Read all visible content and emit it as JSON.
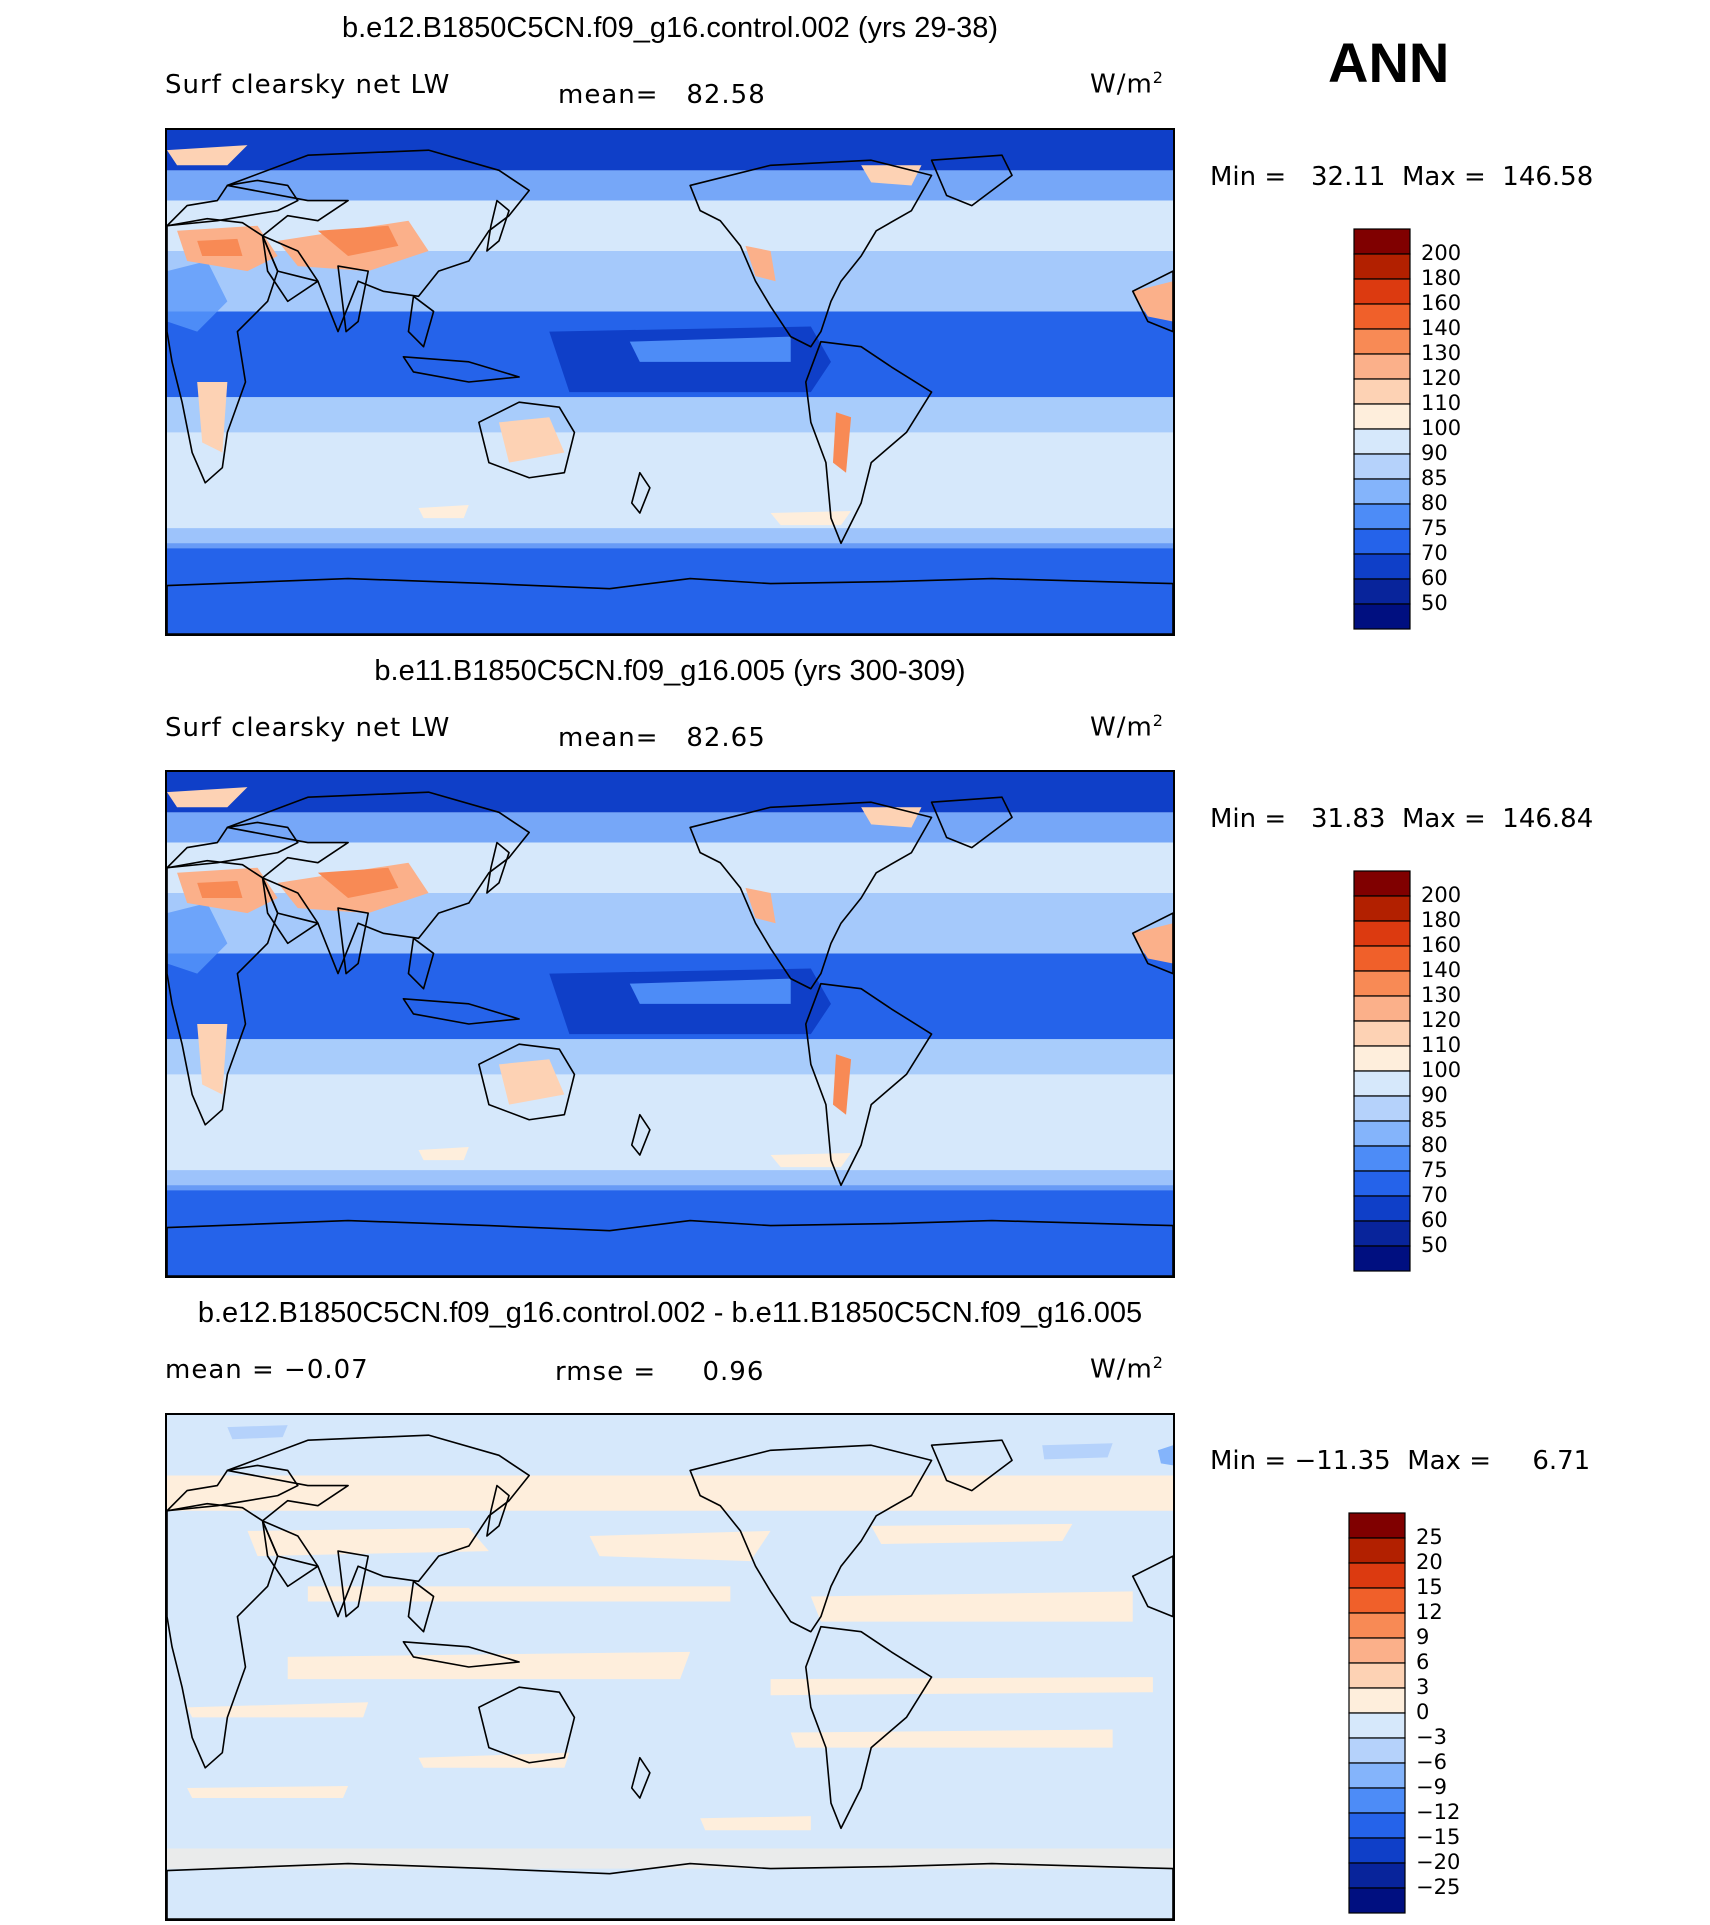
{
  "page_title": "ANN",
  "units_label": "W/m",
  "units_exponent": "2",
  "panels": [
    {
      "title": "b.e12.B1850C5CN.f09_g16.control.002 (yrs 29-38)",
      "left_label": "Surf clearsky net LW",
      "stat1": "mean=   82.58",
      "stat2": "",
      "minmax": "Min =   32.11  Max =  146.58",
      "palette": "abs",
      "bg_color": "#d6e8fb",
      "levels": [
        "200",
        "180",
        "160",
        "140",
        "130",
        "120",
        "110",
        "100",
        "90",
        "85",
        "80",
        "75",
        "70",
        "60",
        "50"
      ]
    },
    {
      "title": "b.e11.B1850C5CN.f09_g16.005 (yrs 300-309)",
      "left_label": "Surf clearsky net LW",
      "stat1": "mean=   82.65",
      "stat2": "",
      "minmax": "Min =   31.83  Max =  146.84",
      "palette": "abs",
      "bg_color": "#d6e8fb",
      "levels": [
        "200",
        "180",
        "160",
        "140",
        "130",
        "120",
        "110",
        "100",
        "90",
        "85",
        "80",
        "75",
        "70",
        "60",
        "50"
      ]
    },
    {
      "title": "b.e12.B1850C5CN.f09_g16.control.002 - b.e11.B1850C5CN.f09_g16.005",
      "left_label": "mean =   −0.07",
      "stat1": "rmse =     0.96",
      "stat2": "",
      "minmax": "Min = −11.35  Max =     6.71",
      "palette": "diff",
      "bg_color": "#d6e8fb",
      "levels": [
        "25",
        "20",
        "15",
        "12",
        "9",
        "6",
        "3",
        "0",
        "−3",
        "−6",
        "−9",
        "−12",
        "−15",
        "−20",
        "−25"
      ]
    }
  ],
  "colors": {
    "scale": [
      "#800000",
      "#b22000",
      "#dc3a10",
      "#f0602a",
      "#f88a55",
      "#fbb08a",
      "#fdd2b4",
      "#feeedc",
      "#d6e8fb",
      "#b5d2fb",
      "#84b4fb",
      "#4d8cf7",
      "#2563ea",
      "#0f3fc8",
      "#08249b",
      "#000f80"
    ]
  }
}
